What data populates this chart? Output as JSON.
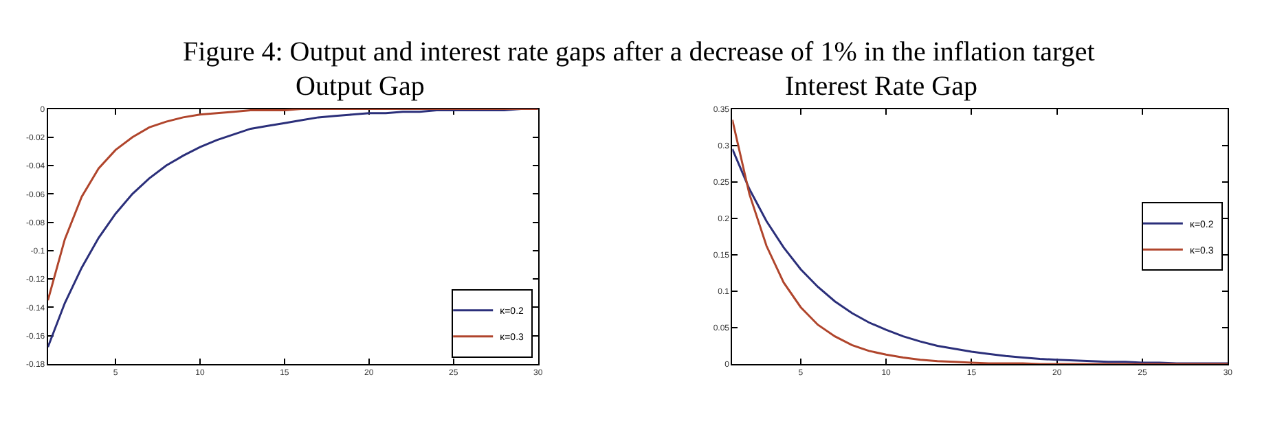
{
  "chart_data": [
    {
      "type": "line",
      "title": "Figure 4: Output and interest rate gaps after a decrease of 1% in the inflation target",
      "subtitle": "Output Gap",
      "x": [
        1,
        2,
        3,
        4,
        5,
        6,
        7,
        8,
        9,
        10,
        11,
        12,
        13,
        14,
        15,
        16,
        17,
        18,
        19,
        20,
        21,
        22,
        23,
        24,
        25,
        26,
        27,
        28,
        29,
        30
      ],
      "series": [
        {
          "name": "κ=0.2",
          "color": "#2b2f7a",
          "values": [
            -0.168,
            -0.137,
            -0.112,
            -0.091,
            -0.074,
            -0.06,
            -0.049,
            -0.04,
            -0.033,
            -0.027,
            -0.022,
            -0.018,
            -0.014,
            -0.012,
            -0.01,
            -0.008,
            -0.006,
            -0.005,
            -0.004,
            -0.003,
            -0.003,
            -0.002,
            -0.002,
            -0.001,
            -0.001,
            -0.001,
            -0.001,
            -0.001,
            0,
            0
          ]
        },
        {
          "name": "κ=0.3",
          "color": "#b0452c",
          "values": [
            -0.135,
            -0.092,
            -0.062,
            -0.042,
            -0.029,
            -0.02,
            -0.013,
            -0.009,
            -0.006,
            -0.004,
            -0.003,
            -0.002,
            -0.001,
            -0.001,
            -0.001,
            0,
            0,
            0,
            0,
            0,
            0,
            0,
            0,
            0,
            0,
            0,
            0,
            0,
            0,
            0
          ]
        }
      ],
      "xlim": [
        1,
        30
      ],
      "xticks": [
        5,
        10,
        15,
        20,
        25,
        30
      ],
      "ylim": [
        -0.18,
        0
      ],
      "yticks": [
        -0.18,
        -0.16,
        -0.14,
        -0.12,
        -0.1,
        -0.08,
        -0.06,
        -0.04,
        -0.02,
        0
      ],
      "legend": "bottom right",
      "marker": "none",
      "line_style": "solid"
    },
    {
      "type": "line",
      "title": "Interest Rate Gap",
      "x": [
        1,
        2,
        3,
        4,
        5,
        6,
        7,
        8,
        9,
        10,
        11,
        12,
        13,
        14,
        15,
        16,
        17,
        18,
        19,
        20,
        21,
        22,
        23,
        24,
        25,
        26,
        27,
        28,
        29,
        30
      ],
      "series": [
        {
          "name": "κ=0.2",
          "color": "#2b2f7a",
          "values": [
            0.295,
            0.24,
            0.196,
            0.16,
            0.13,
            0.106,
            0.086,
            0.07,
            0.057,
            0.047,
            0.038,
            0.031,
            0.025,
            0.021,
            0.017,
            0.014,
            0.011,
            0.009,
            0.007,
            0.006,
            0.005,
            0.004,
            0.003,
            0.003,
            0.002,
            0.002,
            0.001,
            0.001,
            0.001,
            0.001
          ]
        },
        {
          "name": "κ=0.3",
          "color": "#b0452c",
          "values": [
            0.335,
            0.233,
            0.162,
            0.112,
            0.078,
            0.054,
            0.038,
            0.026,
            0.018,
            0.013,
            0.009,
            0.006,
            0.004,
            0.003,
            0.002,
            0.001,
            0.001,
            0.001,
            0,
            0,
            0,
            0,
            0,
            0,
            0,
            0,
            0,
            0,
            0,
            0
          ]
        }
      ],
      "xlim": [
        1,
        30
      ],
      "xticks": [
        5,
        10,
        15,
        20,
        25,
        30
      ],
      "ylim": [
        0,
        0.35
      ],
      "yticks": [
        0,
        0.05,
        0.1,
        0.15,
        0.2,
        0.25,
        0.3,
        0.35
      ],
      "legend": "right",
      "marker": "none",
      "line_style": "solid"
    }
  ]
}
